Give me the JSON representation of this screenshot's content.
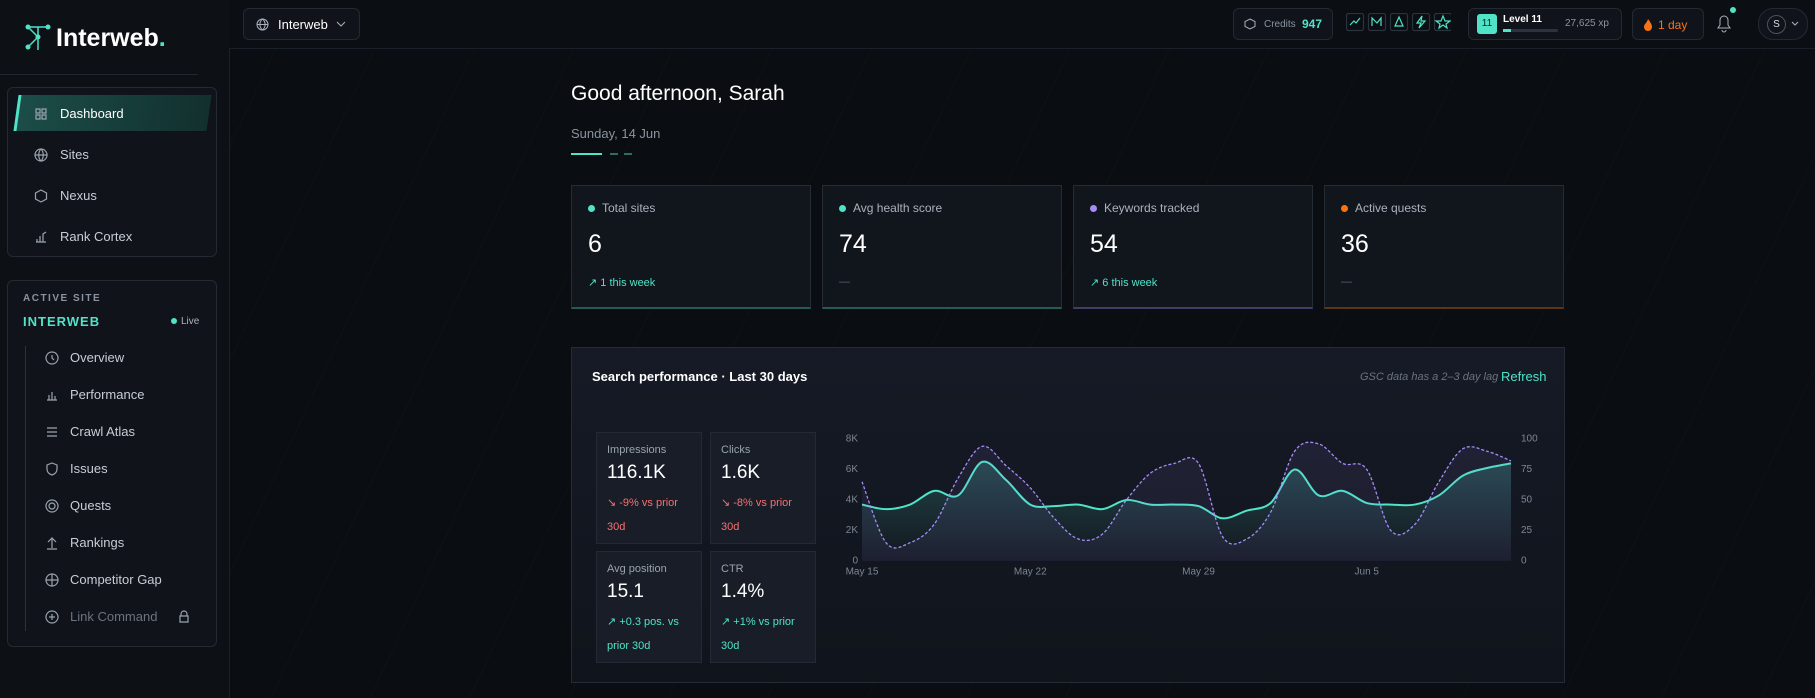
{
  "brand": {
    "name": "Interweb",
    "dot": "."
  },
  "topbar": {
    "site": "Interweb",
    "credits_label": "Credits",
    "credits": 947,
    "level_badge": 11,
    "level": "Level 11",
    "xp": "27,625 xp",
    "streak": "1 day",
    "avatar": "S"
  },
  "nav": [
    "Dashboard",
    "Sites",
    "Nexus",
    "Rank Cortex"
  ],
  "active_site": {
    "heading": "ACTIVE SITE",
    "name": "INTERWEB",
    "status": "Live",
    "items": [
      "Overview",
      "Performance",
      "Crawl Atlas",
      "Issues",
      "Quests",
      "Rankings",
      "Competitor Gap",
      "Link Command"
    ]
  },
  "greeting": "Good afternoon, Sarah",
  "date": "Sunday, 14 Jun",
  "stats": [
    {
      "label": "Total sites",
      "value": "6",
      "delta": "↗ 1 this week"
    },
    {
      "label": "Avg health score",
      "value": "74",
      "delta": "—"
    },
    {
      "label": "Keywords tracked",
      "value": "54",
      "delta": "↗ 6 this week"
    },
    {
      "label": "Active quests",
      "value": "36",
      "delta": "—"
    }
  ],
  "panel": {
    "title": "Search performance · Last 30 days",
    "note": "GSC data has a 2–3 day lag",
    "action": "Refresh",
    "metrics": [
      {
        "label": "Impressions",
        "value": "116.1K",
        "delta": "↘ -9% vs prior 30d"
      },
      {
        "label": "Clicks",
        "value": "1.6K",
        "delta": "↘ -8% vs prior 30d"
      },
      {
        "label": "Avg position",
        "value": "15.1",
        "delta": "↗ +0.3 pos. vs prior 30d"
      },
      {
        "label": "CTR",
        "value": "1.4%",
        "delta": "↗ +1% vs prior 30d"
      }
    ]
  },
  "chart_data": {
    "type": "line",
    "categories": [
      "May 15",
      null,
      null,
      null,
      null,
      null,
      null,
      "May 22",
      null,
      null,
      null,
      null,
      null,
      null,
      "May 29",
      null,
      null,
      null,
      null,
      null,
      null,
      "Jun 5",
      null,
      null,
      null,
      null,
      null,
      null
    ],
    "series": [
      {
        "name": "Impressions",
        "color": "#4fe3c8",
        "values": [
          3700,
          3400,
          3700,
          4600,
          4300,
          6500,
          5300,
          3700,
          3600,
          3700,
          3400,
          4000,
          3700,
          3700,
          3600,
          2800,
          3300,
          3800,
          6000,
          4300,
          4600,
          3800,
          3700,
          3700,
          4300,
          5600,
          6100,
          6400
        ]
      },
      {
        "name": "Clicks",
        "color": "#a78bfa",
        "axis": "y2",
        "values": [
          65,
          15,
          15,
          30,
          68,
          94,
          78,
          60,
          35,
          18,
          22,
          50,
          72,
          80,
          80,
          20,
          18,
          40,
          90,
          96,
          80,
          75,
          25,
          30,
          65,
          92,
          90,
          82
        ]
      }
    ],
    "ylim": [
      0,
      8000
    ],
    "yticks": [
      0,
      {
        "value": 2000,
        "label": "2K"
      },
      {
        "value": 4000,
        "label": "4K"
      },
      {
        "value": 6000,
        "label": "6K"
      },
      {
        "value": 8000,
        "label": "8K"
      }
    ],
    "y2lim": [
      0,
      100
    ],
    "y2ticks": [
      0,
      25,
      50,
      75,
      100
    ]
  }
}
